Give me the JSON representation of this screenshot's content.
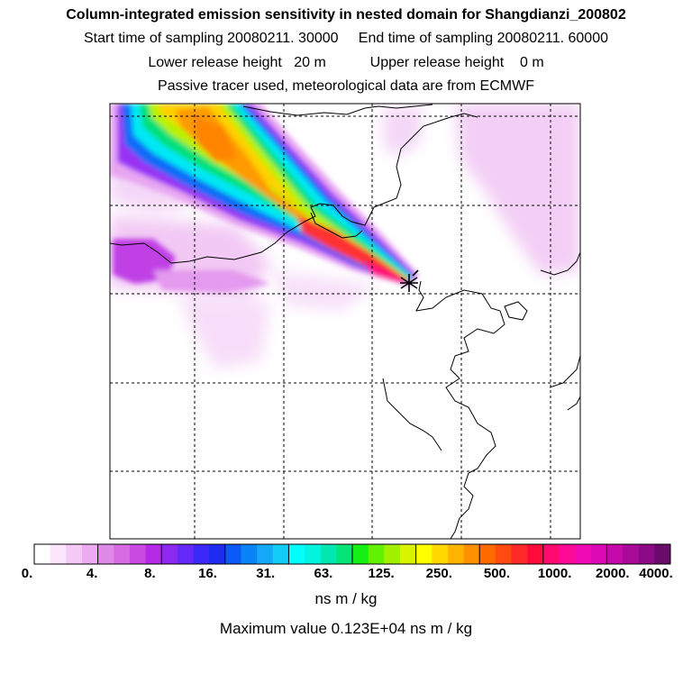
{
  "header": {
    "title": "Column-integrated emission sensitivity in nested domain for Shangdianzi_200802",
    "sampling": "Start time of sampling 20080211. 30000     End time of sampling 20080211. 60000",
    "release": "Lower release height   20 m           Upper release height    0 m",
    "note": "Passive tracer used, meteorological data are from ECMWF"
  },
  "colorbar": {
    "tick_labels": [
      "0.",
      "4.",
      "8.",
      "16.",
      "31.",
      "63.",
      "125.",
      "250.",
      "500.",
      "1000.",
      "2000.",
      "4000."
    ],
    "units": "ns m / kg",
    "colors": [
      "#ffffff",
      "#fbe6fb",
      "#f6c8f6",
      "#eeaaf0",
      "#e08ae8",
      "#d66ce4",
      "#c84ae0",
      "#b428e8",
      "#8c28f0",
      "#6428f8",
      "#3c28f8",
      "#1e2cf0",
      "#0a5af8",
      "#0a82f8",
      "#14a8f8",
      "#14ccf8",
      "#00ffff",
      "#00f4e0",
      "#00e8b0",
      "#00e478",
      "#14f014",
      "#60f000",
      "#a0f000",
      "#d8f400",
      "#ffff00",
      "#ffd800",
      "#ffb400",
      "#ff9000",
      "#ff6a00",
      "#ff4a10",
      "#ff2a28",
      "#ff0a3c",
      "#ff0a6e",
      "#ff0a96",
      "#f00ab4",
      "#dc0ab4",
      "#c40aaa",
      "#aa0a9a",
      "#8c0a86",
      "#6a0a6a"
    ]
  },
  "max_value": "Maximum value  0.123E+04 ns m / kg",
  "map": {
    "receptor_marker": "Shangdianzi"
  }
}
